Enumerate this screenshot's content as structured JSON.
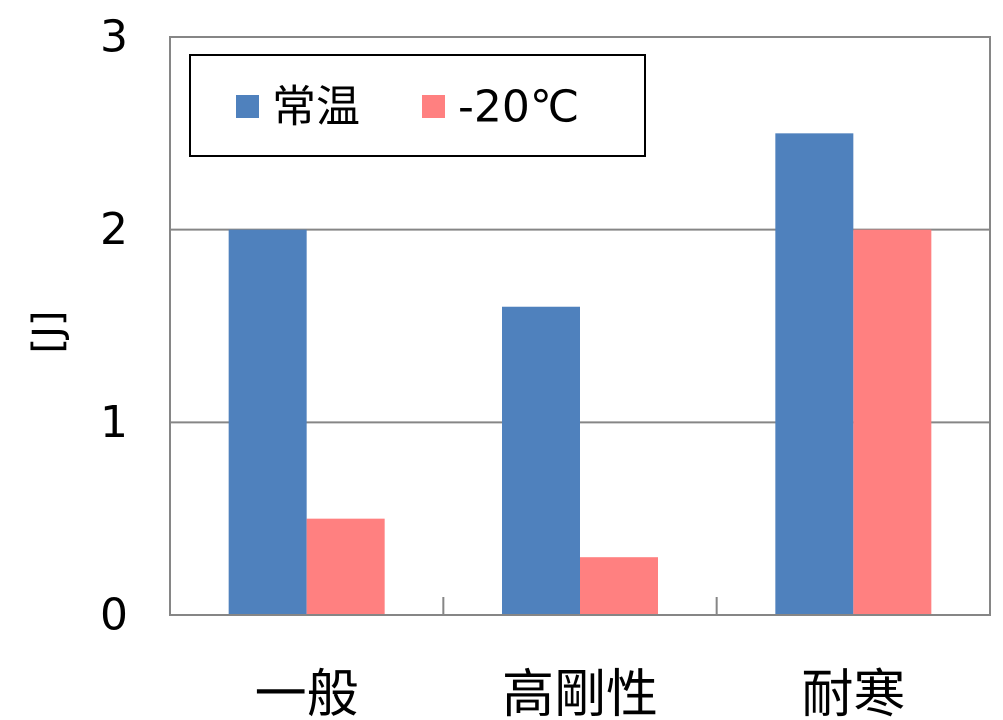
{
  "chart_data": {
    "type": "bar",
    "title": "",
    "xlabel": "",
    "ylabel": "[J]",
    "categories": [
      "一般",
      "高剛性",
      "耐寒"
    ],
    "series": [
      {
        "name": "常温",
        "color": "#4f81bd",
        "values": [
          2.0,
          1.6,
          2.5
        ]
      },
      {
        "name": "-20℃",
        "color": "#ff8080",
        "values": [
          0.5,
          0.3,
          2.0
        ]
      }
    ],
    "ylim": [
      0,
      3
    ],
    "yticks": [
      "0",
      "1",
      "2",
      "3"
    ],
    "grid": true,
    "legend_position": "top-left"
  }
}
